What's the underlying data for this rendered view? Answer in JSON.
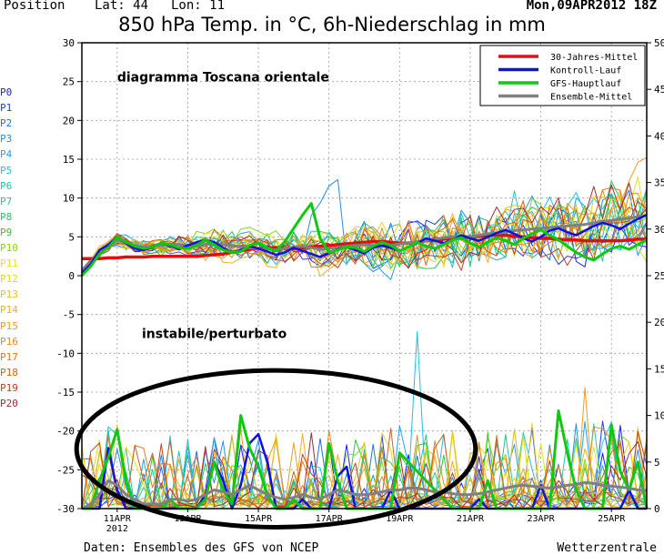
{
  "header": {
    "position_label": "Position",
    "lat_label": "Lat: 44",
    "lon_label": "Lon: 11",
    "run_date": "Mon,09APR2012 18Z"
  },
  "footer": {
    "source": "Daten: Ensembles des GFS von NCEP",
    "brand": "Wetterzentrale"
  },
  "members": [
    {
      "label": "P0",
      "color": "#1a1aff"
    },
    {
      "label": "P1",
      "color": "#1f3fd8"
    },
    {
      "label": "P2",
      "color": "#1f6fe8"
    },
    {
      "label": "P3",
      "color": "#1f8fe8"
    },
    {
      "label": "P4",
      "color": "#1fa6e8"
    },
    {
      "label": "P5",
      "color": "#1fc0e0"
    },
    {
      "label": "P6",
      "color": "#1fc8b0"
    },
    {
      "label": "P7",
      "color": "#1fc890"
    },
    {
      "label": "P8",
      "color": "#1fc860"
    },
    {
      "label": "P9",
      "color": "#30c830"
    },
    {
      "label": "P10",
      "color": "#80d820"
    },
    {
      "label": "P11",
      "color": "#e8e020"
    },
    {
      "label": "P12",
      "color": "#f0d020"
    },
    {
      "label": "P13",
      "color": "#f0c020"
    },
    {
      "label": "P14",
      "color": "#f0b020"
    },
    {
      "label": "P15",
      "color": "#f09a20"
    },
    {
      "label": "P16",
      "color": "#e88a20"
    },
    {
      "label": "P17",
      "color": "#e07a20"
    },
    {
      "label": "P18",
      "color": "#d06020"
    },
    {
      "label": "P19",
      "color": "#c04020"
    },
    {
      "label": "P20",
      "color": "#a82a2a"
    }
  ],
  "chart_data": {
    "type": "line",
    "title": "850 hPa Temp. in °C, 6h-Niederschlag in mm",
    "x_unit": "date",
    "x_range": [
      "2012-04-10T00",
      "2012-04-26T00"
    ],
    "x_ticks": [
      {
        "date": "2012-04-11",
        "label": "11APR",
        "sub": "2012"
      },
      {
        "date": "2012-04-13",
        "label": "13APR",
        "sub": ""
      },
      {
        "date": "2012-04-15",
        "label": "15APR",
        "sub": ""
      },
      {
        "date": "2012-04-17",
        "label": "17APR",
        "sub": ""
      },
      {
        "date": "2012-04-19",
        "label": "19APR",
        "sub": ""
      },
      {
        "date": "2012-04-21",
        "label": "21APR",
        "sub": ""
      },
      {
        "date": "2012-04-23",
        "label": "23APR",
        "sub": ""
      },
      {
        "date": "2012-04-25",
        "label": "25APR",
        "sub": ""
      }
    ],
    "y_left": {
      "min": -30,
      "max": 30,
      "ticks": [
        30,
        25,
        20,
        15,
        10,
        5,
        0,
        -5,
        -10,
        -15,
        -20,
        -25,
        -30
      ]
    },
    "y_right": {
      "min": 0,
      "max": 50,
      "ticks": [
        50,
        45,
        40,
        35,
        30,
        25,
        20,
        15,
        10,
        5,
        0
      ]
    },
    "grid": true,
    "legend": {
      "position": "top-right",
      "entries": [
        {
          "name": "30-Jahres-Mittel",
          "color": "#e01010"
        },
        {
          "name": "Kontroll-Lauf",
          "color": "#1010e0"
        },
        {
          "name": "GFS-Hauptlauf",
          "color": "#10c810"
        },
        {
          "name": "Ensemble-Mittel",
          "color": "#808080"
        }
      ]
    },
    "annotations": [
      {
        "text": "diagramma Toscana orientale",
        "at": {
          "date": "2012-04-11.0",
          "value": 25
        }
      },
      {
        "text": "instabile/perturbato",
        "at": {
          "date": "2012-04-11.7",
          "value": -8
        }
      }
    ],
    "ellipse": {
      "center": {
        "day": 5.5,
        "temp": -22.3
      },
      "semi_axis_days": 5.65,
      "semi_axis_temp": 10.1
    },
    "series_temp": [
      {
        "name": "30-Jahres-Mittel",
        "color": "#e01010",
        "width": 3.5,
        "values": [
          2.2,
          2.2,
          2.2,
          2.3,
          2.3,
          2.4,
          2.4,
          2.4,
          2.5,
          2.5,
          2.5,
          2.5,
          2.5,
          2.5,
          2.6,
          2.7,
          2.8,
          3.0,
          3.2,
          3.4,
          3.5,
          3.6,
          3.6,
          3.5,
          3.5,
          3.6,
          3.7,
          3.8,
          3.9,
          4.0,
          4.1,
          4.2,
          4.3,
          4.4,
          4.4,
          4.3,
          4.2,
          4.2,
          4.3,
          4.5,
          4.6,
          4.7,
          4.8,
          4.9,
          5.0,
          5.1,
          5.2,
          5.2,
          5.2,
          5.1,
          5.0,
          4.9,
          4.8,
          4.8,
          4.7,
          4.6,
          4.6,
          4.5,
          4.5,
          4.5,
          4.5,
          4.5,
          4.6,
          4.7,
          4.7
        ]
      },
      {
        "name": "Ensemble-Mittel",
        "color": "#808080",
        "width": 3,
        "values": [
          0.5,
          1.8,
          3.0,
          3.8,
          4.6,
          4.2,
          3.9,
          3.7,
          3.8,
          3.9,
          4.1,
          4.0,
          3.9,
          3.8,
          4.0,
          4.1,
          4.0,
          3.9,
          3.7,
          3.6,
          3.5,
          3.4,
          3.3,
          3.5,
          3.7,
          3.8,
          3.6,
          3.4,
          3.5,
          3.6,
          3.8,
          3.9,
          4.0,
          3.9,
          3.8,
          3.9,
          4.1,
          4.2,
          4.4,
          4.5,
          4.7,
          4.9,
          5.0,
          5.1,
          5.0,
          5.2,
          5.4,
          5.5,
          5.6,
          5.8,
          5.9,
          6.0,
          6.1,
          6.2,
          6.3,
          6.4,
          6.5,
          6.6,
          6.8,
          7.0,
          7.1,
          7.3,
          7.4,
          7.6,
          7.8
        ]
      },
      {
        "name": "Kontroll-Lauf",
        "color": "#1010e0",
        "width": 2.5,
        "values": [
          0.3,
          1.5,
          3.3,
          4.0,
          5.0,
          4.2,
          3.5,
          3.3,
          3.8,
          4.2,
          3.9,
          3.4,
          3.9,
          4.3,
          4.6,
          4.3,
          3.6,
          3.0,
          3.3,
          3.8,
          3.5,
          3.1,
          2.7,
          3.0,
          3.6,
          3.2,
          2.8,
          2.4,
          2.9,
          3.4,
          3.7,
          3.3,
          2.9,
          3.6,
          3.9,
          3.6,
          3.2,
          3.7,
          4.2,
          4.8,
          4.5,
          4.2,
          4.6,
          5.2,
          4.8,
          4.5,
          5.0,
          5.5,
          5.9,
          5.4,
          4.8,
          4.4,
          5.0,
          5.8,
          6.1,
          5.6,
          5.2,
          5.8,
          6.4,
          6.8,
          6.5,
          6.0,
          6.7,
          7.3,
          7.8
        ]
      },
      {
        "name": "GFS-Hauptlauf",
        "color": "#10c810",
        "width": 3,
        "values": [
          0.0,
          1.2,
          2.8,
          3.6,
          5.0,
          4.3,
          3.8,
          3.5,
          3.7,
          4.2,
          4.0,
          3.6,
          3.5,
          3.9,
          4.6,
          4.0,
          3.3,
          3.0,
          3.1,
          3.9,
          4.2,
          3.6,
          3.2,
          4.4,
          6.1,
          7.8,
          9.3,
          4.8,
          3.0,
          3.3,
          3.7,
          3.6,
          3.1,
          3.8,
          4.3,
          3.9,
          3.2,
          3.7,
          4.3,
          3.8,
          3.5,
          4.0,
          4.6,
          4.9,
          4.2,
          3.7,
          4.3,
          4.9,
          4.5,
          4.0,
          4.8,
          5.4,
          5.9,
          5.2,
          4.6,
          3.8,
          3.0,
          2.4,
          2.0,
          2.8,
          3.5,
          3.8,
          3.4,
          4.0,
          4.6
        ]
      }
    ],
    "series_precip_mm": [
      {
        "name": "Kontroll-Lauf",
        "color": "#1010e0",
        "width": 2.5,
        "values": [
          0,
          0,
          0,
          6.5,
          2.0,
          0,
          0,
          0,
          0,
          0,
          0,
          0,
          0,
          0,
          1.5,
          5.0,
          3.0,
          0,
          2.5,
          7.0,
          8.0,
          5.0,
          0,
          0,
          0,
          1.0,
          0,
          0,
          0,
          3.5,
          4.5,
          0,
          0,
          0,
          0,
          2.0,
          0,
          0,
          0,
          0,
          0,
          0,
          0,
          0,
          0,
          1.0,
          0,
          0,
          0,
          0,
          0,
          0,
          2.5,
          0,
          0,
          0,
          0,
          0,
          0,
          0,
          0,
          0,
          2.0,
          0,
          0
        ]
      },
      {
        "name": "GFS-Hauptlauf",
        "color": "#10c810",
        "width": 3,
        "values": [
          0,
          0,
          3.0,
          5.5,
          8.5,
          3.0,
          0,
          0,
          0,
          0,
          1.0,
          0,
          0,
          0,
          1.0,
          5.0,
          2.0,
          0.5,
          10.0,
          6.5,
          4.5,
          1.5,
          0,
          0,
          1.0,
          0,
          0,
          0,
          7.0,
          3.0,
          0,
          0,
          0,
          0,
          0,
          0,
          6.0,
          5.0,
          4.0,
          3.0,
          2.0,
          1.0,
          0,
          0,
          0,
          0,
          3.0,
          0,
          0,
          0,
          0,
          0,
          0,
          0,
          10.5,
          6.0,
          2.0,
          0,
          0,
          0,
          9.0,
          4.0,
          2.0,
          5.0,
          0
        ]
      },
      {
        "name": "Ensemble-Mittel",
        "color": "#808080",
        "width": 3,
        "values": [
          0,
          0.5,
          1.5,
          3.0,
          2.5,
          1.5,
          1.0,
          0.5,
          0.5,
          0.5,
          1.0,
          1.0,
          0.8,
          1.0,
          1.5,
          2.0,
          1.8,
          1.5,
          2.0,
          2.5,
          2.0,
          1.5,
          1.2,
          1.0,
          1.2,
          1.5,
          1.2,
          1.0,
          1.5,
          2.0,
          1.8,
          1.5,
          1.5,
          1.6,
          1.8,
          2.0,
          2.0,
          2.2,
          2.2,
          2.0,
          1.8,
          1.8,
          1.6,
          1.5,
          1.5,
          1.6,
          1.8,
          2.0,
          2.2,
          2.4,
          2.5,
          2.4,
          2.3,
          2.2,
          2.3,
          2.5,
          2.6,
          2.8,
          2.7,
          2.5,
          2.4,
          2.3,
          2.2,
          2.0,
          1.9
        ]
      }
    ]
  }
}
